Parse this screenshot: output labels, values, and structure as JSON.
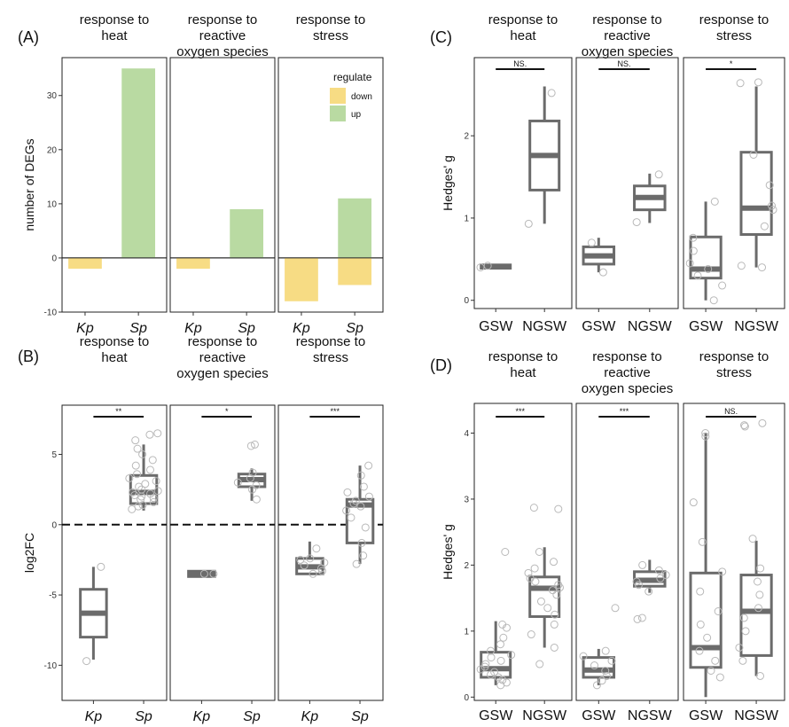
{
  "chart_data": [
    {
      "id": "A",
      "panel_label": "(A)",
      "type": "bar",
      "ylabel": "number of DEGs",
      "ylim": [
        -10,
        37
      ],
      "yticks": [
        -10,
        0,
        10,
        20,
        30
      ],
      "categories": [
        "Kp",
        "Sp"
      ],
      "legend": {
        "title": "regulate",
        "position": "top-right",
        "items": [
          {
            "label": "down",
            "color": "#f7dc84"
          },
          {
            "label": "up",
            "color": "#b9daa2"
          }
        ]
      },
      "facets": [
        {
          "title": [
            "response to",
            "heat"
          ],
          "bars": [
            {
              "category": "Kp",
              "regulate": "down",
              "value": -2
            },
            {
              "category": "Sp",
              "regulate": "up",
              "value": 35
            }
          ]
        },
        {
          "title": [
            "response to",
            "reactive",
            "oxygen species"
          ],
          "bars": [
            {
              "category": "Kp",
              "regulate": "down",
              "value": -2
            },
            {
              "category": "Sp",
              "regulate": "up",
              "value": 9
            }
          ]
        },
        {
          "title": [
            "response to",
            "stress"
          ],
          "bars": [
            {
              "category": "Kp",
              "regulate": "down",
              "value": -8
            },
            {
              "category": "Sp",
              "regulate": "down",
              "value": -5
            },
            {
              "category": "Sp",
              "regulate": "up",
              "value": 11
            }
          ]
        }
      ]
    },
    {
      "id": "B",
      "panel_label": "(B)",
      "type": "box",
      "ylabel": "log2FC",
      "ylim": [
        -12.5,
        8.5
      ],
      "yticks": [
        -10,
        -5,
        0,
        5
      ],
      "hline": 0,
      "categories": [
        "Kp",
        "Sp"
      ],
      "facets": [
        {
          "title": [
            "response to",
            "heat"
          ],
          "sig": "**",
          "boxes": [
            {
              "category": "Kp",
              "lower_whisker": -9.6,
              "q1": -8.0,
              "median": -6.3,
              "q3": -4.6,
              "upper_whisker": -3.0,
              "points": [
                -9.7,
                -3.0
              ]
            },
            {
              "category": "Sp",
              "lower_whisker": 1.0,
              "q1": 1.5,
              "median": 2.3,
              "q3": 3.5,
              "upper_whisker": 5.7,
              "points": [
                1.1,
                1.3,
                1.4,
                1.6,
                1.8,
                1.9,
                2.0,
                2.1,
                2.2,
                2.3,
                2.4,
                2.5,
                2.7,
                2.9,
                3.1,
                3.3,
                3.6,
                3.9,
                4.2,
                4.6,
                5.0,
                5.4,
                6.0,
                6.4,
                6.5
              ]
            }
          ]
        },
        {
          "title": [
            "response to",
            "reactive",
            "oxygen species"
          ],
          "sig": "*",
          "boxes": [
            {
              "category": "Kp",
              "lower_whisker": -3.55,
              "q1": -3.55,
              "median": -3.5,
              "q3": -3.45,
              "upper_whisker": -3.45,
              "points": [
                -3.5,
                -3.5
              ]
            },
            {
              "category": "Sp",
              "lower_whisker": 1.7,
              "q1": 2.7,
              "median": 3.2,
              "q3": 3.6,
              "upper_whisker": 4.0,
              "points": [
                1.8,
                2.5,
                2.8,
                3.0,
                3.3,
                3.7,
                5.6,
                5.7
              ]
            }
          ]
        },
        {
          "title": [
            "response to",
            "stress"
          ],
          "sig": "***",
          "boxes": [
            {
              "category": "Kp",
              "lower_whisker": -3.5,
              "q1": -3.5,
              "median": -3.0,
              "q3": -2.4,
              "upper_whisker": -1.2,
              "points": [
                -3.5,
                -3.3,
                -3.1,
                -2.9,
                -2.7,
                -2.5,
                -2.4,
                -1.7
              ]
            },
            {
              "category": "Sp",
              "lower_whisker": -2.8,
              "q1": -1.3,
              "median": 1.4,
              "q3": 1.8,
              "upper_whisker": 4.2,
              "points": [
                -2.8,
                -2.2,
                -1.3,
                -0.2,
                0.5,
                1.0,
                1.3,
                1.5,
                1.7,
                2.0,
                2.3,
                2.7,
                3.5,
                4.2
              ]
            }
          ]
        }
      ]
    },
    {
      "id": "C",
      "panel_label": "(C)",
      "type": "box",
      "ylabel": "Hedges' g",
      "ylim": [
        -0.1,
        2.95
      ],
      "yticks": [
        0,
        1,
        2
      ],
      "categories": [
        "GSW",
        "NGSW"
      ],
      "facets": [
        {
          "title": [
            "response to",
            "heat"
          ],
          "sig": "NS.",
          "boxes": [
            {
              "category": "GSW",
              "lower_whisker": 0.39,
              "q1": 0.39,
              "median": 0.41,
              "q3": 0.43,
              "upper_whisker": 0.43,
              "points": [
                0.4,
                0.42
              ]
            },
            {
              "category": "NGSW",
              "lower_whisker": 0.93,
              "q1": 1.34,
              "median": 1.76,
              "q3": 2.18,
              "upper_whisker": 2.6,
              "points": [
                0.93,
                2.52
              ]
            }
          ]
        },
        {
          "title": [
            "response to",
            "reactive",
            "oxygen species"
          ],
          "sig": "NS.",
          "boxes": [
            {
              "category": "GSW",
              "lower_whisker": 0.34,
              "q1": 0.44,
              "median": 0.54,
              "q3": 0.65,
              "upper_whisker": 0.76,
              "points": [
                0.34,
                0.7
              ]
            },
            {
              "category": "NGSW",
              "lower_whisker": 0.94,
              "q1": 1.1,
              "median": 1.25,
              "q3": 1.39,
              "upper_whisker": 1.54,
              "points": [
                0.95,
                1.53
              ]
            }
          ]
        },
        {
          "title": [
            "response to",
            "stress"
          ],
          "sig": "*",
          "boxes": [
            {
              "category": "GSW",
              "lower_whisker": 0.0,
              "q1": 0.27,
              "median": 0.38,
              "q3": 0.77,
              "upper_whisker": 1.2,
              "points": [
                0.0,
                0.18,
                0.3,
                0.38,
                0.45,
                0.6,
                0.76,
                1.2
              ]
            },
            {
              "category": "NGSW",
              "lower_whisker": 0.4,
              "q1": 0.8,
              "median": 1.12,
              "q3": 1.8,
              "upper_whisker": 2.6,
              "points": [
                0.4,
                0.42,
                0.9,
                1.1,
                1.15,
                1.4,
                1.77,
                2.64,
                2.65
              ]
            }
          ]
        }
      ]
    },
    {
      "id": "D",
      "panel_label": "(D)",
      "type": "box",
      "ylabel": "Hedges' g",
      "ylim": [
        -0.05,
        4.45
      ],
      "yticks": [
        0,
        1,
        2,
        3,
        4
      ],
      "categories": [
        "GSW",
        "NGSW"
      ],
      "facets": [
        {
          "title": [
            "response to",
            "heat"
          ],
          "sig": "***",
          "boxes": [
            {
              "category": "GSW",
              "lower_whisker": 0.18,
              "q1": 0.3,
              "median": 0.43,
              "q3": 0.68,
              "upper_whisker": 1.15,
              "points": [
                0.18,
                0.22,
                0.26,
                0.3,
                0.34,
                0.38,
                0.42,
                0.46,
                0.5,
                0.55,
                0.6,
                0.64,
                0.7,
                0.8,
                0.9,
                1.05,
                1.1,
                2.2
              ]
            },
            {
              "category": "NGSW",
              "lower_whisker": 0.75,
              "q1": 1.22,
              "median": 1.65,
              "q3": 1.82,
              "upper_whisker": 2.27,
              "points": [
                0.5,
                0.75,
                0.95,
                1.1,
                1.25,
                1.35,
                1.45,
                1.55,
                1.62,
                1.66,
                1.7,
                1.75,
                1.8,
                1.88,
                1.95,
                2.05,
                2.2,
                2.85,
                2.87
              ]
            }
          ]
        },
        {
          "title": [
            "response to",
            "reactive",
            "oxygen species"
          ],
          "sig": "***",
          "boxes": [
            {
              "category": "GSW",
              "lower_whisker": 0.18,
              "q1": 0.3,
              "median": 0.41,
              "q3": 0.6,
              "upper_whisker": 0.73,
              "points": [
                0.18,
                0.25,
                0.32,
                0.4,
                0.48,
                0.55,
                0.62,
                0.7,
                1.35
              ]
            },
            {
              "category": "NGSW",
              "lower_whisker": 1.58,
              "q1": 1.68,
              "median": 1.77,
              "q3": 1.9,
              "upper_whisker": 2.08,
              "points": [
                1.18,
                1.2,
                1.6,
                1.7,
                1.75,
                1.8,
                1.85,
                1.92,
                2.0
              ]
            }
          ]
        },
        {
          "title": [
            "response to",
            "stress"
          ],
          "sig": "NS.",
          "boxes": [
            {
              "category": "GSW",
              "lower_whisker": 0.0,
              "q1": 0.45,
              "median": 0.75,
              "q3": 1.88,
              "upper_whisker": 4.0,
              "points": [
                0.3,
                0.4,
                0.55,
                0.7,
                0.9,
                1.1,
                1.3,
                1.6,
                1.9,
                2.35,
                2.95,
                3.95,
                4.0
              ]
            },
            {
              "category": "NGSW",
              "lower_whisker": 0.32,
              "q1": 0.63,
              "median": 1.3,
              "q3": 1.85,
              "upper_whisker": 2.37,
              "points": [
                0.32,
                0.55,
                0.75,
                1.0,
                1.2,
                1.35,
                1.55,
                1.75,
                1.95,
                2.4,
                4.1,
                4.12,
                4.15
              ]
            }
          ]
        }
      ]
    }
  ]
}
